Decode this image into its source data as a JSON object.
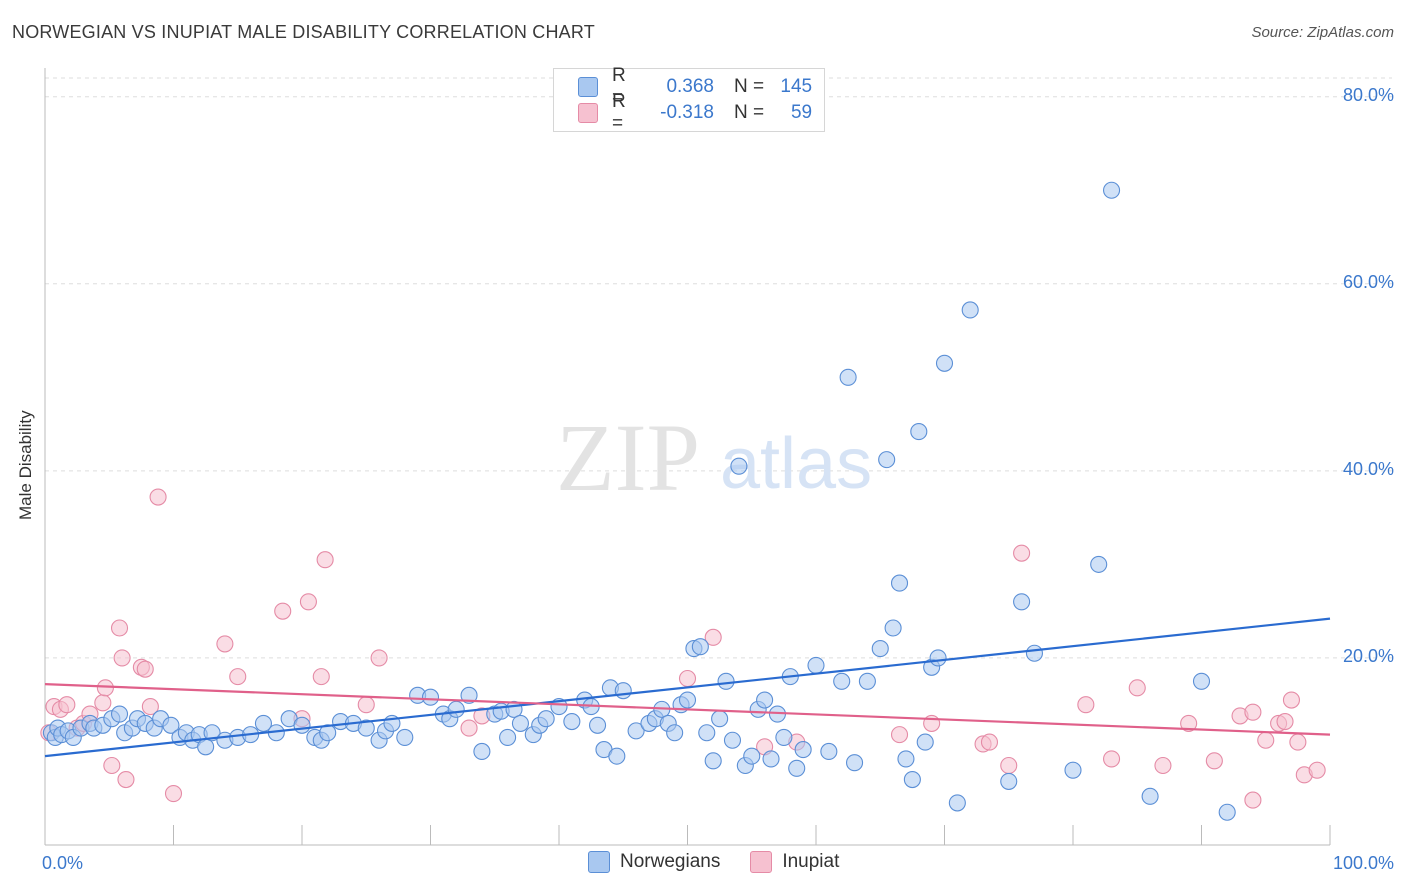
{
  "header": {
    "title": "NORWEGIAN VS INUPIAT MALE DISABILITY CORRELATION CHART",
    "source": "Source: ZipAtlas.com"
  },
  "watermark": {
    "zip": "ZIP",
    "atlas": "atlas"
  },
  "legend": {
    "rows": [
      {
        "r_label": "R =",
        "r_value": "0.368",
        "n_label": "N =",
        "n_value": "145"
      },
      {
        "r_label": "R =",
        "r_value": "-0.318",
        "n_label": "N =",
        "n_value": "59"
      }
    ]
  },
  "bottom_legend": {
    "norwegians": "Norwegians",
    "inupiat": "Inupiat"
  },
  "colors": {
    "blue_fill": "#a9c8f0",
    "blue_stroke": "#5b8fd6",
    "blue_line": "#2a6bd0",
    "pink_fill": "#f6c1d0",
    "pink_stroke": "#e58ba6",
    "pink_line": "#e0608a",
    "accent_text": "#3b78cc",
    "grid": "#dddddd"
  },
  "chart_data": {
    "type": "scatter",
    "title": "NORWEGIAN VS INUPIAT MALE DISABILITY CORRELATION CHART",
    "xlabel": "",
    "ylabel": "Male Disability",
    "xlim": [
      0,
      100
    ],
    "ylim": [
      0,
      82
    ],
    "y_ticks": [
      {
        "value": 20,
        "label": "20.0%"
      },
      {
        "value": 40,
        "label": "40.0%"
      },
      {
        "value": 60,
        "label": "60.0%"
      },
      {
        "value": 80,
        "label": "80.0%"
      }
    ],
    "x_tick_labels": [
      {
        "value": 0,
        "label": "0.0%"
      },
      {
        "value": 100,
        "label": "100.0%"
      }
    ],
    "x_minor_ticks": [
      10,
      20,
      30,
      40,
      50,
      60,
      70,
      80,
      90,
      100
    ],
    "series": [
      {
        "name": "Norwegians",
        "trend": {
          "x0": 0,
          "y0": 9.5,
          "x1": 100,
          "y1": 24.2
        },
        "points": [
          [
            0.5,
            12
          ],
          [
            0.8,
            11.5
          ],
          [
            1,
            12.5
          ],
          [
            1.3,
            11.8
          ],
          [
            1.8,
            12.2
          ],
          [
            2.2,
            11.5
          ],
          [
            2.8,
            12.5
          ],
          [
            3.5,
            13
          ],
          [
            3.8,
            12.5
          ],
          [
            4.5,
            12.8
          ],
          [
            5.2,
            13.5
          ],
          [
            5.8,
            14
          ],
          [
            6.2,
            12
          ],
          [
            6.8,
            12.5
          ],
          [
            7.2,
            13.5
          ],
          [
            7.8,
            13
          ],
          [
            8.5,
            12.5
          ],
          [
            9,
            13.5
          ],
          [
            9.8,
            12.8
          ],
          [
            10.5,
            11.5
          ],
          [
            11,
            12
          ],
          [
            11.5,
            11.2
          ],
          [
            12,
            11.8
          ],
          [
            12.5,
            10.5
          ],
          [
            13,
            12
          ],
          [
            14,
            11.2
          ],
          [
            15,
            11.5
          ],
          [
            16,
            11.8
          ],
          [
            17,
            13
          ],
          [
            18,
            12
          ],
          [
            19,
            13.5
          ],
          [
            20,
            12.8
          ],
          [
            21,
            11.5
          ],
          [
            21.5,
            11.2
          ],
          [
            22,
            12
          ],
          [
            23,
            13.2
          ],
          [
            24,
            13
          ],
          [
            25,
            12.5
          ],
          [
            26,
            11.2
          ],
          [
            26.5,
            12.2
          ],
          [
            27,
            13
          ],
          [
            28,
            11.5
          ],
          [
            29,
            16
          ],
          [
            30,
            15.8
          ],
          [
            31,
            14
          ],
          [
            31.5,
            13.5
          ],
          [
            32,
            14.5
          ],
          [
            33,
            16
          ],
          [
            34,
            10
          ],
          [
            35,
            14
          ],
          [
            35.5,
            14.3
          ],
          [
            36,
            11.5
          ],
          [
            36.5,
            14.5
          ],
          [
            37,
            13
          ],
          [
            38,
            11.8
          ],
          [
            38.5,
            12.8
          ],
          [
            39,
            13.5
          ],
          [
            40,
            14.8
          ],
          [
            41,
            13.2
          ],
          [
            42,
            15.5
          ],
          [
            42.5,
            14.8
          ],
          [
            43,
            12.8
          ],
          [
            43.5,
            10.2
          ],
          [
            44,
            16.8
          ],
          [
            44.5,
            9.5
          ],
          [
            45,
            16.5
          ],
          [
            46,
            12.2
          ],
          [
            47,
            13
          ],
          [
            47.5,
            13.5
          ],
          [
            48,
            14.5
          ],
          [
            48.5,
            13
          ],
          [
            49,
            12
          ],
          [
            49.5,
            15
          ],
          [
            50,
            15.5
          ],
          [
            50.5,
            21
          ],
          [
            51,
            21.2
          ],
          [
            51.5,
            12
          ],
          [
            52,
            9
          ],
          [
            52.5,
            13.5
          ],
          [
            53,
            17.5
          ],
          [
            53.5,
            11.2
          ],
          [
            54,
            40.5
          ],
          [
            54.5,
            8.5
          ],
          [
            55,
            9.5
          ],
          [
            55.5,
            14.5
          ],
          [
            56,
            15.5
          ],
          [
            56.5,
            9.2
          ],
          [
            57,
            14
          ],
          [
            57.5,
            11.5
          ],
          [
            58,
            18
          ],
          [
            58.5,
            8.2
          ],
          [
            59,
            10.2
          ],
          [
            60,
            19.2
          ],
          [
            61,
            10
          ],
          [
            62,
            17.5
          ],
          [
            62.5,
            50
          ],
          [
            63,
            8.8
          ],
          [
            64,
            17.5
          ],
          [
            65,
            21
          ],
          [
            65.5,
            41.2
          ],
          [
            66,
            23.2
          ],
          [
            66.5,
            28
          ],
          [
            67,
            9.2
          ],
          [
            67.5,
            7
          ],
          [
            68,
            44.2
          ],
          [
            68.5,
            11
          ],
          [
            69,
            19
          ],
          [
            69.5,
            20
          ],
          [
            70,
            51.5
          ],
          [
            71,
            4.5
          ],
          [
            72,
            57.2
          ],
          [
            75,
            6.8
          ],
          [
            76,
            26
          ],
          [
            77,
            20.5
          ],
          [
            80,
            8
          ],
          [
            82,
            30
          ],
          [
            83,
            70
          ],
          [
            86,
            5.2
          ],
          [
            90,
            17.5
          ],
          [
            92,
            3.5
          ]
        ]
      },
      {
        "name": "Inupiat",
        "trend": {
          "x0": 0,
          "y0": 17.2,
          "x1": 100,
          "y1": 11.8
        },
        "points": [
          [
            0.3,
            12
          ],
          [
            0.7,
            14.8
          ],
          [
            1.2,
            14.5
          ],
          [
            1.7,
            15
          ],
          [
            2.5,
            12.5
          ],
          [
            3,
            13
          ],
          [
            3.5,
            14
          ],
          [
            4.5,
            15.2
          ],
          [
            4.7,
            16.8
          ],
          [
            5.2,
            8.5
          ],
          [
            5.8,
            23.2
          ],
          [
            6,
            20
          ],
          [
            6.3,
            7
          ],
          [
            7.5,
            19
          ],
          [
            7.8,
            18.8
          ],
          [
            8.2,
            14.8
          ],
          [
            8.8,
            37.2
          ],
          [
            10,
            5.5
          ],
          [
            14,
            21.5
          ],
          [
            15,
            18
          ],
          [
            18.5,
            25
          ],
          [
            20,
            13.5
          ],
          [
            20.5,
            26
          ],
          [
            21.5,
            18
          ],
          [
            21.8,
            30.5
          ],
          [
            25,
            15
          ],
          [
            26,
            20
          ],
          [
            33,
            12.5
          ],
          [
            34,
            13.8
          ],
          [
            50,
            17.8
          ],
          [
            52,
            22.2
          ],
          [
            56,
            10.5
          ],
          [
            58.5,
            11
          ],
          [
            66.5,
            11.8
          ],
          [
            69,
            13
          ],
          [
            73,
            10.8
          ],
          [
            73.5,
            11
          ],
          [
            75,
            8.5
          ],
          [
            76,
            31.2
          ],
          [
            81,
            15
          ],
          [
            83,
            9.2
          ],
          [
            85,
            16.8
          ],
          [
            87,
            8.5
          ],
          [
            89,
            13
          ],
          [
            91,
            9
          ],
          [
            93,
            13.8
          ],
          [
            94,
            14.2
          ],
          [
            94,
            4.8
          ],
          [
            95,
            11.2
          ],
          [
            96,
            13
          ],
          [
            96.5,
            13.2
          ],
          [
            97,
            15.5
          ],
          [
            97.5,
            11
          ],
          [
            98,
            7.5
          ],
          [
            99,
            8
          ]
        ]
      }
    ]
  }
}
